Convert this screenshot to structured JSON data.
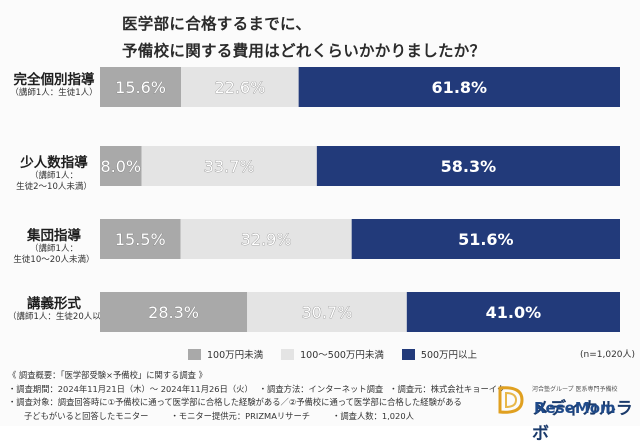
{
  "title": {
    "line1": "医学部に合格するまでに、",
    "line2": "予備校に関する費用はどれくらいかかりましたか？"
  },
  "colors": {
    "under_100": "#a9a9a9",
    "range_100_500": "#e4e4e4",
    "over_500": "#223a7a",
    "background": "#fbfbfb"
  },
  "chart_data": {
    "type": "bar",
    "orientation": "horizontal",
    "stacked": "100%",
    "categories": [
      "完全個別指導",
      "少人数指導",
      "集団指導",
      "講義形式"
    ],
    "category_sub_labels": [
      "（講師1人：生徒1人）",
      "（講師1人：\n生徒2〜10人未満）",
      "（講師1人：\n生徒10〜20人未満）",
      "（講師1人：生徒20人以上）"
    ],
    "series": [
      {
        "name": "100万円未満",
        "values": [
          15.6,
          8.0,
          15.5,
          28.3
        ],
        "labels": [
          "15.6%",
          "8.0%",
          "15.5%",
          "28.3%"
        ]
      },
      {
        "name": "100〜500万円未満",
        "values": [
          22.6,
          33.7,
          32.9,
          30.7
        ],
        "labels": [
          "22.6%",
          "33.7%",
          "32.9%",
          "30.7%"
        ]
      },
      {
        "name": "500万円以上",
        "values": [
          61.8,
          58.3,
          51.6,
          41.0
        ],
        "labels": [
          "61.8%",
          "58.3%",
          "51.6%",
          "41.0%"
        ]
      }
    ],
    "legend_position": "bottom",
    "grid": false,
    "n": "(n=1,020人)"
  },
  "notes": {
    "line1": "《 調査概要：「医学部受験×予備校」に関する調査 》",
    "line2a": "・調査期間：2024年11月21日（木）〜 2024年11月26日（火）",
    "line2b": "・調査方法：インターネット調査",
    "line2c": "・調査元：株式会社キョーイク",
    "line3": "・調査対象：調査回答時に①予備校に通って医学部に合格した経験がある／②予備校に通って医学部に合格した経験がある",
    "line4a": "子どもがいると回答したモニター",
    "line4b": "・モニター提供元：PRIZMAリサーチ",
    "line4c": "・調査人数：1,020人"
  },
  "logo": {
    "small": "河合塾グループ 医系専門予備校",
    "main": "メディカルラボ",
    "watermark": "ReseMom"
  }
}
